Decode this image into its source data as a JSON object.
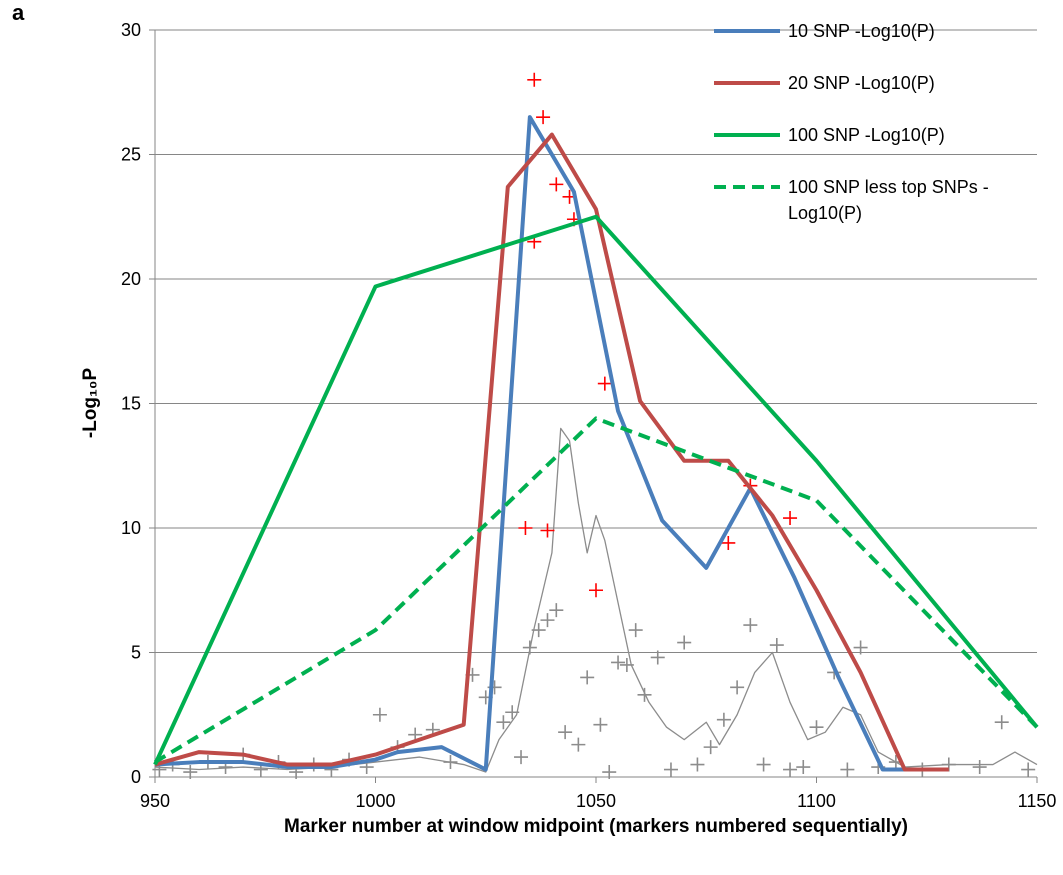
{
  "chart_data": {
    "type": "line",
    "panel_label": "a",
    "x_label": "Marker number at window midpoint (markers numbered sequentially)",
    "y_label": "-Log₁₀P",
    "xlim": [
      950,
      1150
    ],
    "xticks": [
      950,
      1000,
      1050,
      1100,
      1150
    ],
    "ylim": [
      0,
      30
    ],
    "yticks": [
      0,
      5,
      10,
      15,
      20,
      25,
      30
    ],
    "grid": true,
    "legend": "right",
    "series": [
      {
        "name": "10 SNP -Log10(P)",
        "color": "#4a7ebb",
        "style": "solid",
        "x": [
          950,
          960,
          970,
          980,
          990,
          1000,
          1005,
          1015,
          1025,
          1035,
          1045,
          1055,
          1065,
          1075,
          1085,
          1095,
          1105,
          1115,
          1125
        ],
        "values": [
          0.5,
          0.6,
          0.6,
          0.4,
          0.4,
          0.7,
          1.0,
          1.2,
          0.3,
          26.5,
          23.5,
          14.7,
          10.3,
          8.4,
          11.6,
          8.0,
          4.0,
          0.3,
          0.3
        ]
      },
      {
        "name": "20 SNP -Log10(P)",
        "color": "#be4b48",
        "style": "solid",
        "x": [
          950,
          960,
          970,
          980,
          990,
          1000,
          1010,
          1020,
          1030,
          1040,
          1050,
          1060,
          1070,
          1080,
          1090,
          1100,
          1110,
          1120,
          1130
        ],
        "values": [
          0.5,
          1.0,
          0.9,
          0.5,
          0.5,
          0.9,
          1.5,
          2.1,
          23.7,
          25.8,
          22.8,
          15.1,
          12.7,
          12.7,
          10.5,
          7.5,
          4.2,
          0.3,
          0.3
        ]
      },
      {
        "name": "100 SNP -Log10(P)",
        "color": "#00b050",
        "style": "solid",
        "x": [
          950,
          1000,
          1050,
          1100,
          1150
        ],
        "values": [
          0.5,
          19.7,
          22.5,
          12.7,
          2.0
        ]
      },
      {
        "name": "100 SNP less top SNPs - Log10(P)",
        "color": "#00b050",
        "style": "dashed",
        "x": [
          950,
          1000,
          1050,
          1100,
          1150
        ],
        "values": [
          0.6,
          5.9,
          14.4,
          11.1,
          2.0
        ]
      },
      {
        "color": "#8c8c8c",
        "style": "thin",
        "x": [
          950,
          960,
          970,
          980,
          990,
          1000,
          1010,
          1020,
          1025,
          1028,
          1032,
          1036,
          1040,
          1042,
          1044,
          1046,
          1048,
          1050,
          1052,
          1055,
          1058,
          1062,
          1066,
          1070,
          1075,
          1078,
          1082,
          1086,
          1090,
          1094,
          1098,
          1102,
          1106,
          1110,
          1114,
          1120,
          1130,
          1140,
          1145,
          1150
        ],
        "values": [
          0.4,
          0.3,
          0.4,
          0.3,
          0.4,
          0.6,
          0.8,
          0.5,
          0.2,
          1.5,
          2.5,
          6,
          9,
          14,
          13.5,
          11,
          9,
          10.5,
          9.5,
          7,
          4.5,
          3,
          2,
          1.5,
          2.2,
          1.3,
          2.5,
          4.2,
          5,
          3,
          1.5,
          1.8,
          2.8,
          2.5,
          1,
          0.4,
          0.5,
          0.5,
          1,
          0.5
        ]
      },
      {
        "color": "#8c8c8c",
        "style": "marker",
        "x": [
          951,
          954,
          958,
          962,
          966,
          970,
          974,
          978,
          982,
          986,
          990,
          994,
          998,
          1001,
          1005,
          1009,
          1013,
          1017,
          1022,
          1025,
          1027,
          1029,
          1031,
          1033,
          1035,
          1037,
          1039,
          1041,
          1043,
          1046,
          1048,
          1051,
          1053,
          1055,
          1057,
          1059,
          1061,
          1064,
          1067,
          1070,
          1073,
          1076,
          1079,
          1082,
          1085,
          1088,
          1091,
          1094,
          1097,
          1100,
          1104,
          1107,
          1110,
          1114,
          1118,
          1124,
          1130,
          1137,
          1142,
          1148
        ],
        "values": [
          0.3,
          0.5,
          0.2,
          0.6,
          0.4,
          0.9,
          0.3,
          0.6,
          0.2,
          0.5,
          0.3,
          0.7,
          0.4,
          2.5,
          1.2,
          1.7,
          1.9,
          0.6,
          4.1,
          3.2,
          3.6,
          2.2,
          2.6,
          0.8,
          5.2,
          5.9,
          6.3,
          6.7,
          1.8,
          1.3,
          4.0,
          2.1,
          0.2,
          4.6,
          4.5,
          5.9,
          3.3,
          4.8,
          0.3,
          5.4,
          0.5,
          1.2,
          2.3,
          3.6,
          6.1,
          0.5,
          5.3,
          0.3,
          0.4,
          2.0,
          4.2,
          0.3,
          5.2,
          0.4,
          0.6,
          0.3,
          0.5,
          0.4,
          2.2,
          0.3
        ]
      },
      {
        "color": "#ff0000",
        "style": "marker",
        "x": [
          1036,
          1038,
          1041,
          1044,
          1045,
          1036,
          1052,
          1034,
          1039,
          1050,
          1080,
          1085,
          1094
        ],
        "values": [
          28,
          26.5,
          23.8,
          23.3,
          22.4,
          21.5,
          15.8,
          10,
          9.9,
          7.5,
          9.4,
          11.7,
          10.4
        ]
      }
    ]
  }
}
